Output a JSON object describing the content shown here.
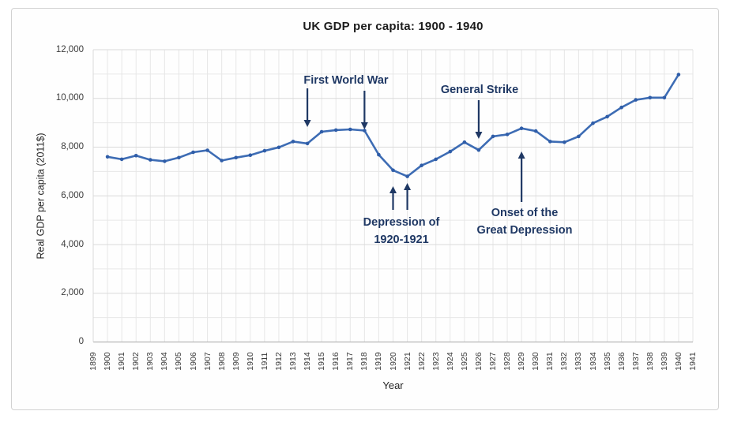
{
  "chart_data": {
    "type": "line",
    "title": "UK GDP per capita: 1900 - 1940",
    "xlabel": "Year",
    "ylabel": "Real GDP per capita (2011$)",
    "x": [
      1900,
      1901,
      1902,
      1903,
      1904,
      1905,
      1906,
      1907,
      1908,
      1909,
      1910,
      1911,
      1912,
      1913,
      1914,
      1915,
      1916,
      1917,
      1918,
      1919,
      1920,
      1921,
      1922,
      1923,
      1924,
      1925,
      1926,
      1927,
      1928,
      1929,
      1930,
      1931,
      1932,
      1933,
      1934,
      1935,
      1936,
      1937,
      1938,
      1939,
      1940
    ],
    "values": [
      7600,
      7500,
      7650,
      7480,
      7420,
      7570,
      7790,
      7870,
      7450,
      7570,
      7670,
      7850,
      7990,
      8230,
      8150,
      8630,
      8700,
      8730,
      8680,
      7690,
      7050,
      6800,
      7250,
      7500,
      7820,
      8200,
      7880,
      8440,
      8520,
      8770,
      8660,
      8230,
      8200,
      8440,
      8980,
      9250,
      9630,
      9940,
      10030,
      10030,
      10980
    ],
    "ylim": [
      0,
      12000
    ],
    "ytick_step": 2000,
    "ytick_labels": [
      "0",
      "2,000",
      "4,000",
      "6,000",
      "8,000",
      "10,000",
      "12,000"
    ],
    "xtick_labels": [
      "1899",
      "1900",
      "1901",
      "1902",
      "1903",
      "1904",
      "1905",
      "1906",
      "1907",
      "1908",
      "1909",
      "1910",
      "1911",
      "1912",
      "1913",
      "1914",
      "1915",
      "1916",
      "1917",
      "1918",
      "1919",
      "1920",
      "1921",
      "1922",
      "1923",
      "1924",
      "1925",
      "1926",
      "1927",
      "1928",
      "1929",
      "1930",
      "1931",
      "1932",
      "1933",
      "1934",
      "1935",
      "1936",
      "1937",
      "1938",
      "1939",
      "1940",
      "1941"
    ],
    "grid": "minor-horizontal-1000-vertical-yearly",
    "legend": "none",
    "colors": {
      "line": "#3d6cb4",
      "marker": "#2f5da8",
      "annotation": "#1f3864",
      "grid_minor": "#e7e7e7",
      "grid_major": "#dadada",
      "axis": "#b6b6b6",
      "title_text": "#1c1c1c",
      "tick_text": "#3a3a3a"
    },
    "annotations": [
      {
        "label": "First World War",
        "arrow_years": [
          1914,
          1918
        ],
        "direction": "down"
      },
      {
        "label": "General Strike",
        "arrow_years": [
          1926
        ],
        "direction": "down"
      },
      {
        "label": "Depression of\n1920-1921",
        "arrow_years": [
          1920,
          1921
        ],
        "direction": "up"
      },
      {
        "label": "Onset of the\nGreat Depression",
        "arrow_years": [
          1929
        ],
        "direction": "up"
      }
    ]
  }
}
